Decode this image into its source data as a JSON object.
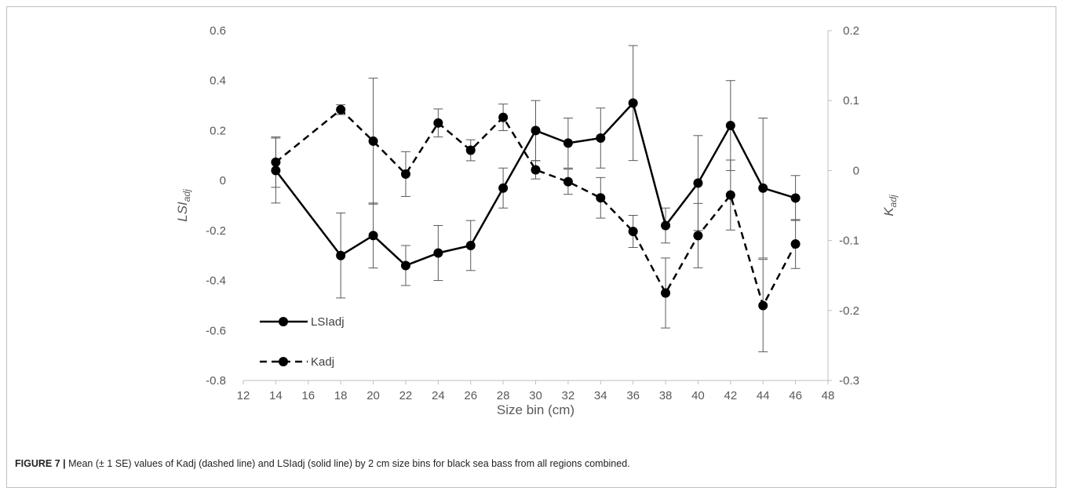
{
  "caption": {
    "label": "FIGURE 7 |",
    "text": " Mean (± 1 SE) values of Kadj (dashed line) and LSIadj (solid line) by 2 cm size bins for black sea bass from all regions combined."
  },
  "chart_data": {
    "type": "line",
    "title": "",
    "xlabel": "Size bin (cm)",
    "ylabel": "LSIadj",
    "y2label": "Kadj",
    "xlim": [
      12,
      48
    ],
    "ylim": [
      -0.8,
      0.6
    ],
    "y2lim": [
      -0.3,
      0.2
    ],
    "xticks": [
      12,
      14,
      16,
      18,
      20,
      22,
      24,
      26,
      28,
      30,
      32,
      34,
      36,
      38,
      40,
      42,
      44,
      46,
      48
    ],
    "yticks": [
      "0.6",
      "0.4",
      "0.2",
      "0",
      "-0.2",
      "-0.4",
      "-0.6",
      "-0.8"
    ],
    "y2ticks": [
      "0.2",
      "0.1",
      "0",
      "-0.1",
      "-0.2",
      "-0.3"
    ],
    "grid": false,
    "legend_position": "bottom-left",
    "x": [
      14,
      18,
      20,
      22,
      24,
      26,
      28,
      30,
      32,
      34,
      36,
      38,
      40,
      42,
      44,
      46
    ],
    "series": [
      {
        "name": "LSIadj",
        "axis": "left",
        "style": "solid",
        "color": "#000000",
        "values": [
          0.04,
          -0.3,
          -0.22,
          -0.34,
          -0.29,
          -0.26,
          -0.03,
          0.2,
          0.15,
          0.17,
          0.31,
          -0.18,
          -0.01,
          0.22,
          -0.03,
          -0.07
        ],
        "se": [
          0.13,
          0.17,
          0.13,
          0.08,
          0.11,
          0.1,
          0.08,
          0.12,
          0.1,
          0.12,
          0.23,
          0.07,
          0.19,
          0.18,
          0.28,
          0.09
        ]
      },
      {
        "name": "Kadj",
        "axis": "right",
        "style": "dashed",
        "color": "#000000",
        "values": [
          0.012,
          0.087,
          0.042,
          -0.005,
          0.068,
          0.029,
          0.076,
          0.001,
          -0.016,
          -0.039,
          -0.087,
          -0.175,
          -0.093,
          -0.035,
          -0.193,
          -0.105
        ],
        "se": [
          0.036,
          0.007,
          0.09,
          0.032,
          0.02,
          0.015,
          0.019,
          0.013,
          0.018,
          0.029,
          0.023,
          0.05,
          0.046,
          0.05,
          0.066,
          0.035
        ]
      }
    ]
  }
}
